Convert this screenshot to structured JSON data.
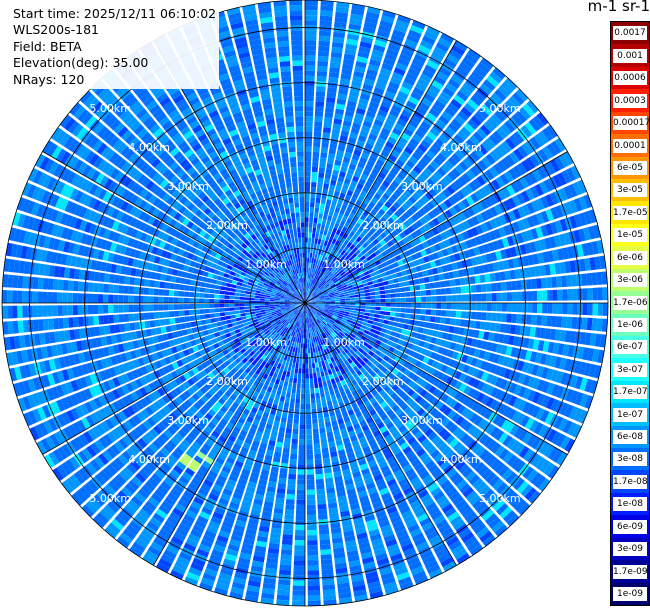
{
  "info": {
    "start_time": "Start time: 2025/12/11 06:10:02",
    "instrument": "WLS200s-181",
    "field": "Field: BETA",
    "elevation": "Elevation(deg): 35.00",
    "nrays": "NRays: 120"
  },
  "colorbar": {
    "unit_label": "m-1 sr-1",
    "ticks": [
      "0.0017",
      "0.001",
      "0.0006",
      "0.0003",
      "0.00017",
      "0.0001",
      "6e-05",
      "3e-05",
      "1.7e-05",
      "1e-05",
      "6e-06",
      "3e-06",
      "1.7e-06",
      "1e-06",
      "6e-07",
      "3e-07",
      "1.7e-07",
      "1e-07",
      "6e-08",
      "3e-08",
      "1.7e-08",
      "1e-08",
      "6e-09",
      "3e-09",
      "1.7e-09",
      "1e-09"
    ],
    "colors": [
      "#8b0000",
      "#b40000",
      "#dc0000",
      "#ff1e00",
      "#ff4600",
      "#ff6e00",
      "#ff9600",
      "#ffbe00",
      "#ffe600",
      "#ffff1e",
      "#e6ff46",
      "#beff6e",
      "#96ff96",
      "#6effbe",
      "#46ffe6",
      "#1effff",
      "#00e6ff",
      "#00beff",
      "#0096ff",
      "#006eff",
      "#0046ff",
      "#001eff",
      "#0000e6",
      "#0000be",
      "#000096",
      "#00006e"
    ]
  },
  "chart_data": {
    "type": "heatmap",
    "projection": "polar (plan position indicator)",
    "field": "BETA",
    "max_range_km": 5.5,
    "range_rings_km": [
      1,
      2,
      3,
      4,
      5
    ],
    "ring_labels": [
      "1.00km",
      "2.00km",
      "3.00km",
      "4.00km",
      "5.00km"
    ],
    "n_rays": 120,
    "elevation_deg": 35.0,
    "color_scale": "log",
    "value_range": [
      1e-09,
      0.0017
    ],
    "dominant_value_range": [
      3e-08,
      1e-07
    ],
    "notable_cells": [
      {
        "azimuth_deg": 215,
        "range_km": 3.5,
        "value": 3e-06
      },
      {
        "azimuth_deg": 212,
        "range_km": 3.3,
        "value": 1.7e-06
      },
      {
        "azimuth_deg": 292,
        "range_km": 4.75,
        "value": 1.7e-07
      }
    ]
  }
}
